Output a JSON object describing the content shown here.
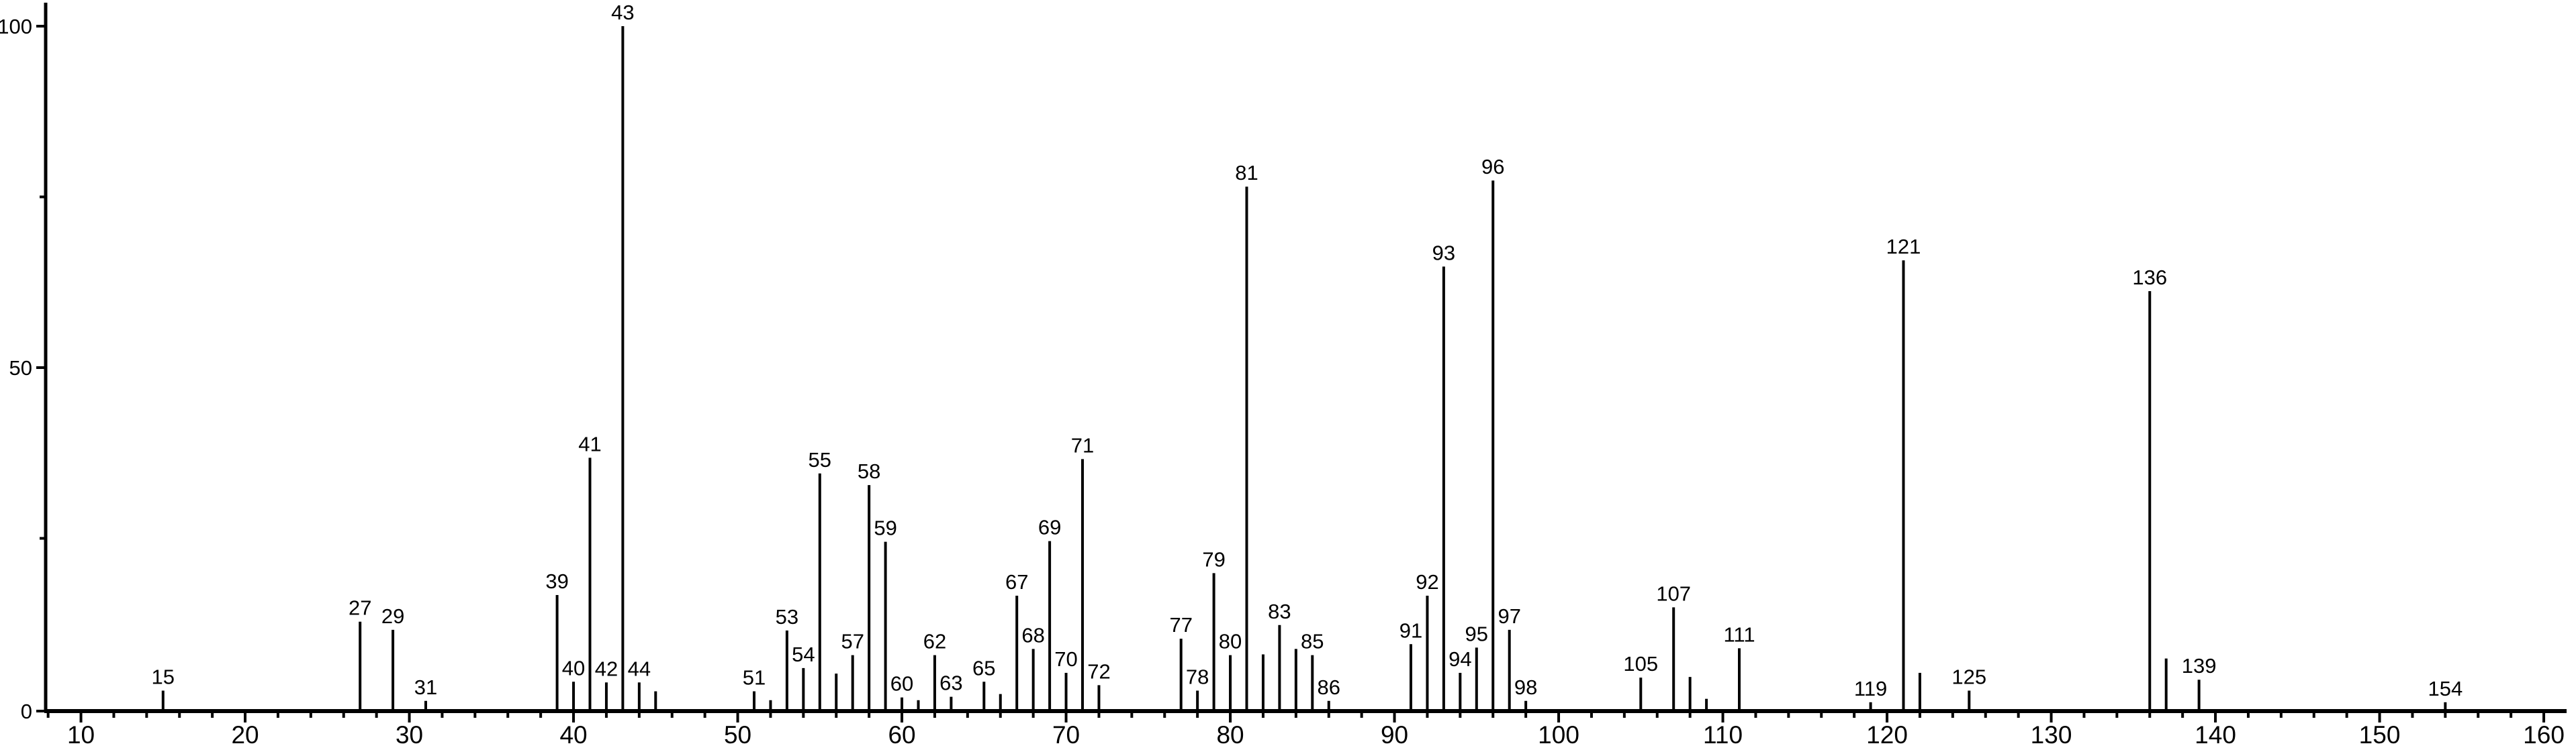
{
  "chart_data": {
    "type": "bar",
    "subtype": "mass-spectrum-stick-plot",
    "title": "",
    "xlabel": "",
    "ylabel": "",
    "background_color": "#ffffff",
    "line_color": "#000000",
    "text_color": "#000000",
    "grid": "off",
    "legend": "none",
    "x_axis": {
      "min": 7.9,
      "max": 161.4,
      "major_tick_step": 10,
      "minor_tick_step": 2,
      "tick_labels": [
        "10",
        "20",
        "30",
        "40",
        "50",
        "60",
        "70",
        "80",
        "90",
        "100",
        "110",
        "120",
        "130",
        "140",
        "150",
        "160"
      ]
    },
    "y_axis": {
      "min": 0,
      "max": 100,
      "major_ticks": [
        0,
        50,
        100
      ],
      "minor_ticks": [
        25,
        75
      ],
      "tick_labels": [
        "0",
        "50",
        "100"
      ]
    },
    "peaks": [
      {
        "mz": 15,
        "intensity": 2.7,
        "labeled": true
      },
      {
        "mz": 27,
        "intensity": 12.8,
        "labeled": true
      },
      {
        "mz": 29,
        "intensity": 11.6,
        "labeled": true
      },
      {
        "mz": 31,
        "intensity": 1.2,
        "labeled": true
      },
      {
        "mz": 39,
        "intensity": 16.7,
        "labeled": true
      },
      {
        "mz": 40,
        "intensity": 4.0,
        "labeled": true
      },
      {
        "mz": 41,
        "intensity": 36.8,
        "labeled": true
      },
      {
        "mz": 42,
        "intensity": 3.9,
        "labeled": true
      },
      {
        "mz": 43,
        "intensity": 100,
        "labeled": true
      },
      {
        "mz": 44,
        "intensity": 3.9,
        "labeled": true
      },
      {
        "mz": 45,
        "intensity": 2.6,
        "labeled": false
      },
      {
        "mz": 51,
        "intensity": 2.6,
        "labeled": true
      },
      {
        "mz": 52,
        "intensity": 1.3,
        "labeled": false
      },
      {
        "mz": 53,
        "intensity": 11.5,
        "labeled": true
      },
      {
        "mz": 54,
        "intensity": 6.0,
        "labeled": true
      },
      {
        "mz": 55,
        "intensity": 34.5,
        "labeled": true
      },
      {
        "mz": 56,
        "intensity": 5.2,
        "labeled": false
      },
      {
        "mz": 57,
        "intensity": 7.9,
        "labeled": true
      },
      {
        "mz": 58,
        "intensity": 32.8,
        "labeled": true
      },
      {
        "mz": 59,
        "intensity": 24.5,
        "labeled": true
      },
      {
        "mz": 60,
        "intensity": 1.7,
        "labeled": true
      },
      {
        "mz": 61,
        "intensity": 1.3,
        "labeled": false
      },
      {
        "mz": 62,
        "intensity": 7.9,
        "labeled": true
      },
      {
        "mz": 63,
        "intensity": 1.8,
        "labeled": true
      },
      {
        "mz": 65,
        "intensity": 4.0,
        "labeled": true
      },
      {
        "mz": 66,
        "intensity": 2.2,
        "labeled": false
      },
      {
        "mz": 67,
        "intensity": 16.6,
        "labeled": true
      },
      {
        "mz": 68,
        "intensity": 8.8,
        "labeled": true
      },
      {
        "mz": 69,
        "intensity": 24.6,
        "labeled": true
      },
      {
        "mz": 70,
        "intensity": 5.3,
        "labeled": true
      },
      {
        "mz": 71,
        "intensity": 36.6,
        "labeled": true
      },
      {
        "mz": 72,
        "intensity": 3.5,
        "labeled": true
      },
      {
        "mz": 77,
        "intensity": 10.3,
        "labeled": true
      },
      {
        "mz": 78,
        "intensity": 2.7,
        "labeled": true
      },
      {
        "mz": 79,
        "intensity": 19.9,
        "labeled": true
      },
      {
        "mz": 80,
        "intensity": 7.9,
        "labeled": true
      },
      {
        "mz": 81,
        "intensity": 76.5,
        "labeled": true
      },
      {
        "mz": 82,
        "intensity": 8.0,
        "labeled": false
      },
      {
        "mz": 83,
        "intensity": 12.3,
        "labeled": true
      },
      {
        "mz": 84,
        "intensity": 8.8,
        "labeled": false
      },
      {
        "mz": 85,
        "intensity": 7.9,
        "labeled": true
      },
      {
        "mz": 86,
        "intensity": 1.2,
        "labeled": true
      },
      {
        "mz": 91,
        "intensity": 9.5,
        "labeled": true
      },
      {
        "mz": 92,
        "intensity": 16.6,
        "labeled": true
      },
      {
        "mz": 93,
        "intensity": 64.8,
        "labeled": true
      },
      {
        "mz": 94,
        "intensity": 5.3,
        "labeled": true
      },
      {
        "mz": 95,
        "intensity": 9.0,
        "labeled": true
      },
      {
        "mz": 96,
        "intensity": 77.4,
        "labeled": true
      },
      {
        "mz": 97,
        "intensity": 11.6,
        "labeled": true
      },
      {
        "mz": 98,
        "intensity": 1.2,
        "labeled": true
      },
      {
        "mz": 105,
        "intensity": 4.6,
        "labeled": true
      },
      {
        "mz": 107,
        "intensity": 14.9,
        "labeled": true
      },
      {
        "mz": 108,
        "intensity": 4.7,
        "labeled": false
      },
      {
        "mz": 109,
        "intensity": 1.5,
        "labeled": false
      },
      {
        "mz": 111,
        "intensity": 8.9,
        "labeled": true
      },
      {
        "mz": 119,
        "intensity": 1.0,
        "labeled": true
      },
      {
        "mz": 121,
        "intensity": 65.7,
        "labeled": true
      },
      {
        "mz": 122,
        "intensity": 5.3,
        "labeled": false
      },
      {
        "mz": 125,
        "intensity": 2.7,
        "labeled": true
      },
      {
        "mz": 136,
        "intensity": 61.2,
        "labeled": true
      },
      {
        "mz": 137,
        "intensity": 7.4,
        "labeled": false
      },
      {
        "mz": 139,
        "intensity": 4.3,
        "labeled": true
      },
      {
        "mz": 154,
        "intensity": 1.0,
        "labeled": true
      }
    ]
  }
}
